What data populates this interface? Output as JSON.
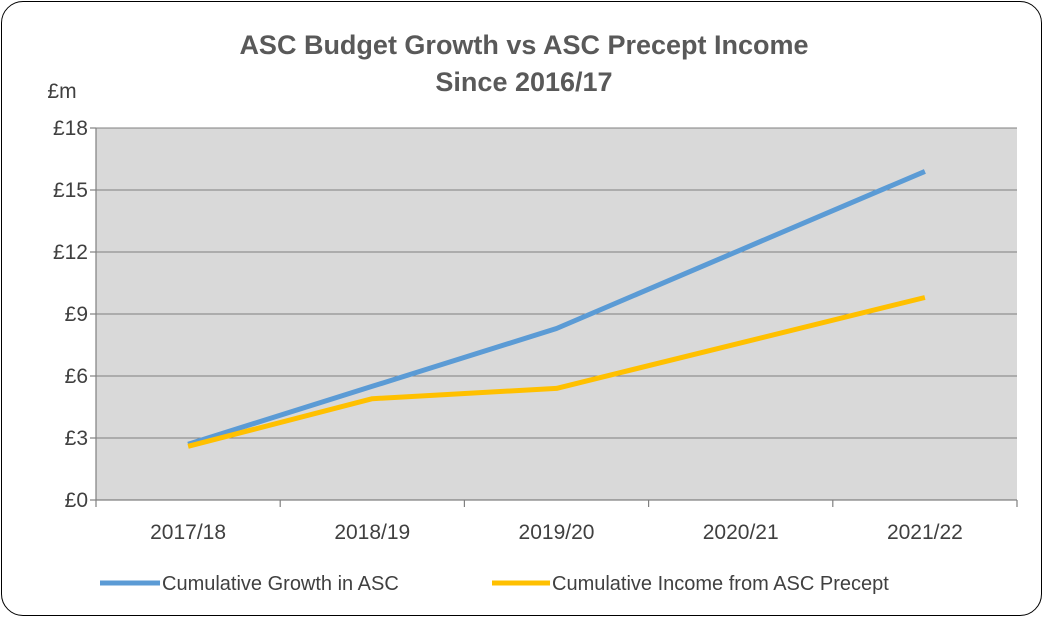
{
  "chart_data": {
    "type": "line",
    "title_line1": "ASC Budget Growth vs ASC Precept Income",
    "title_line2": "Since 2016/17",
    "unit_label": "£m",
    "categories": [
      "2017/18",
      "2018/19",
      "2019/20",
      "2020/21",
      "2021/22"
    ],
    "ylim": [
      0,
      18
    ],
    "yticks": [
      0,
      3,
      6,
      9,
      12,
      15,
      18
    ],
    "ytick_labels": [
      "£0",
      "£3",
      "£6",
      "£9",
      "£12",
      "£15",
      "£18"
    ],
    "grid": true,
    "legend_position": "bottom",
    "series": [
      {
        "name": "Cumulative Growth in ASC",
        "values": [
          2.7,
          5.5,
          8.3,
          12.1,
          15.9
        ],
        "color": "#5b9bd5"
      },
      {
        "name": "Cumulative Income from ASC Precept",
        "values": [
          2.6,
          4.9,
          5.4,
          7.6,
          9.8
        ],
        "color": "#ffc000"
      }
    ],
    "plot_background": "#d9d9d9"
  }
}
